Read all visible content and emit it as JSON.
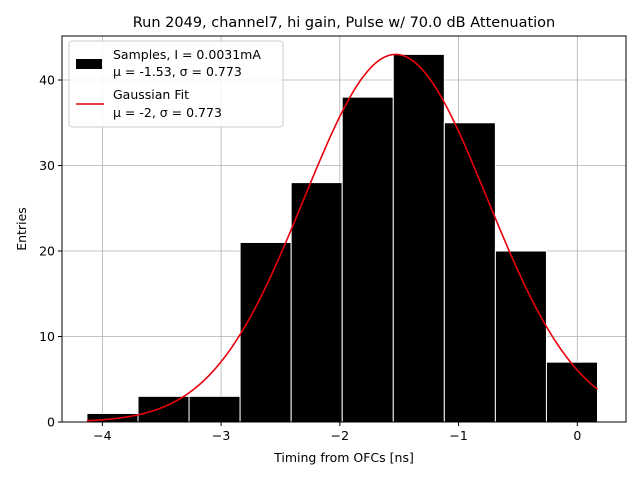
{
  "chart_data": {
    "type": "bar",
    "title": "Run 2049, channel7, hi gain, Pulse w/ 70.0 dB Attenuation",
    "xlabel": "Timing from OFCs [ns]",
    "ylabel": "Entries",
    "xlim": [
      -4.34,
      0.41
    ],
    "ylim": [
      0,
      45.15
    ],
    "xticks": [
      -4,
      -3,
      -2,
      -1,
      0
    ],
    "xtick_labels": [
      "−4",
      "−3",
      "−2",
      "−1",
      "0"
    ],
    "yticks": [
      0,
      10,
      20,
      30,
      40
    ],
    "ytick_labels": [
      "0",
      "10",
      "20",
      "30",
      "40"
    ],
    "grid": true,
    "legend_position": "top-left",
    "histogram": {
      "name": "Samples, I = 0.0031mA",
      "stats_label": "μ = -1.53, σ = 0.773",
      "color": "#000000",
      "edgecolor": "#ffffff",
      "bin_edges": [
        -4.13,
        -3.7,
        -3.27,
        -2.84,
        -2.41,
        -1.98,
        -1.55,
        -1.12,
        -0.69,
        -0.26,
        0.17
      ],
      "counts": [
        1,
        3,
        3,
        21,
        28,
        38,
        43,
        35,
        20,
        7
      ]
    },
    "fit": {
      "name": "Gaussian Fit",
      "stats_label": "μ = -2, σ = 0.773",
      "color": "#e8000b",
      "amplitude": 43,
      "mean": -1.53,
      "sigma": 0.773,
      "x_range": [
        -4.13,
        0.17
      ]
    }
  }
}
